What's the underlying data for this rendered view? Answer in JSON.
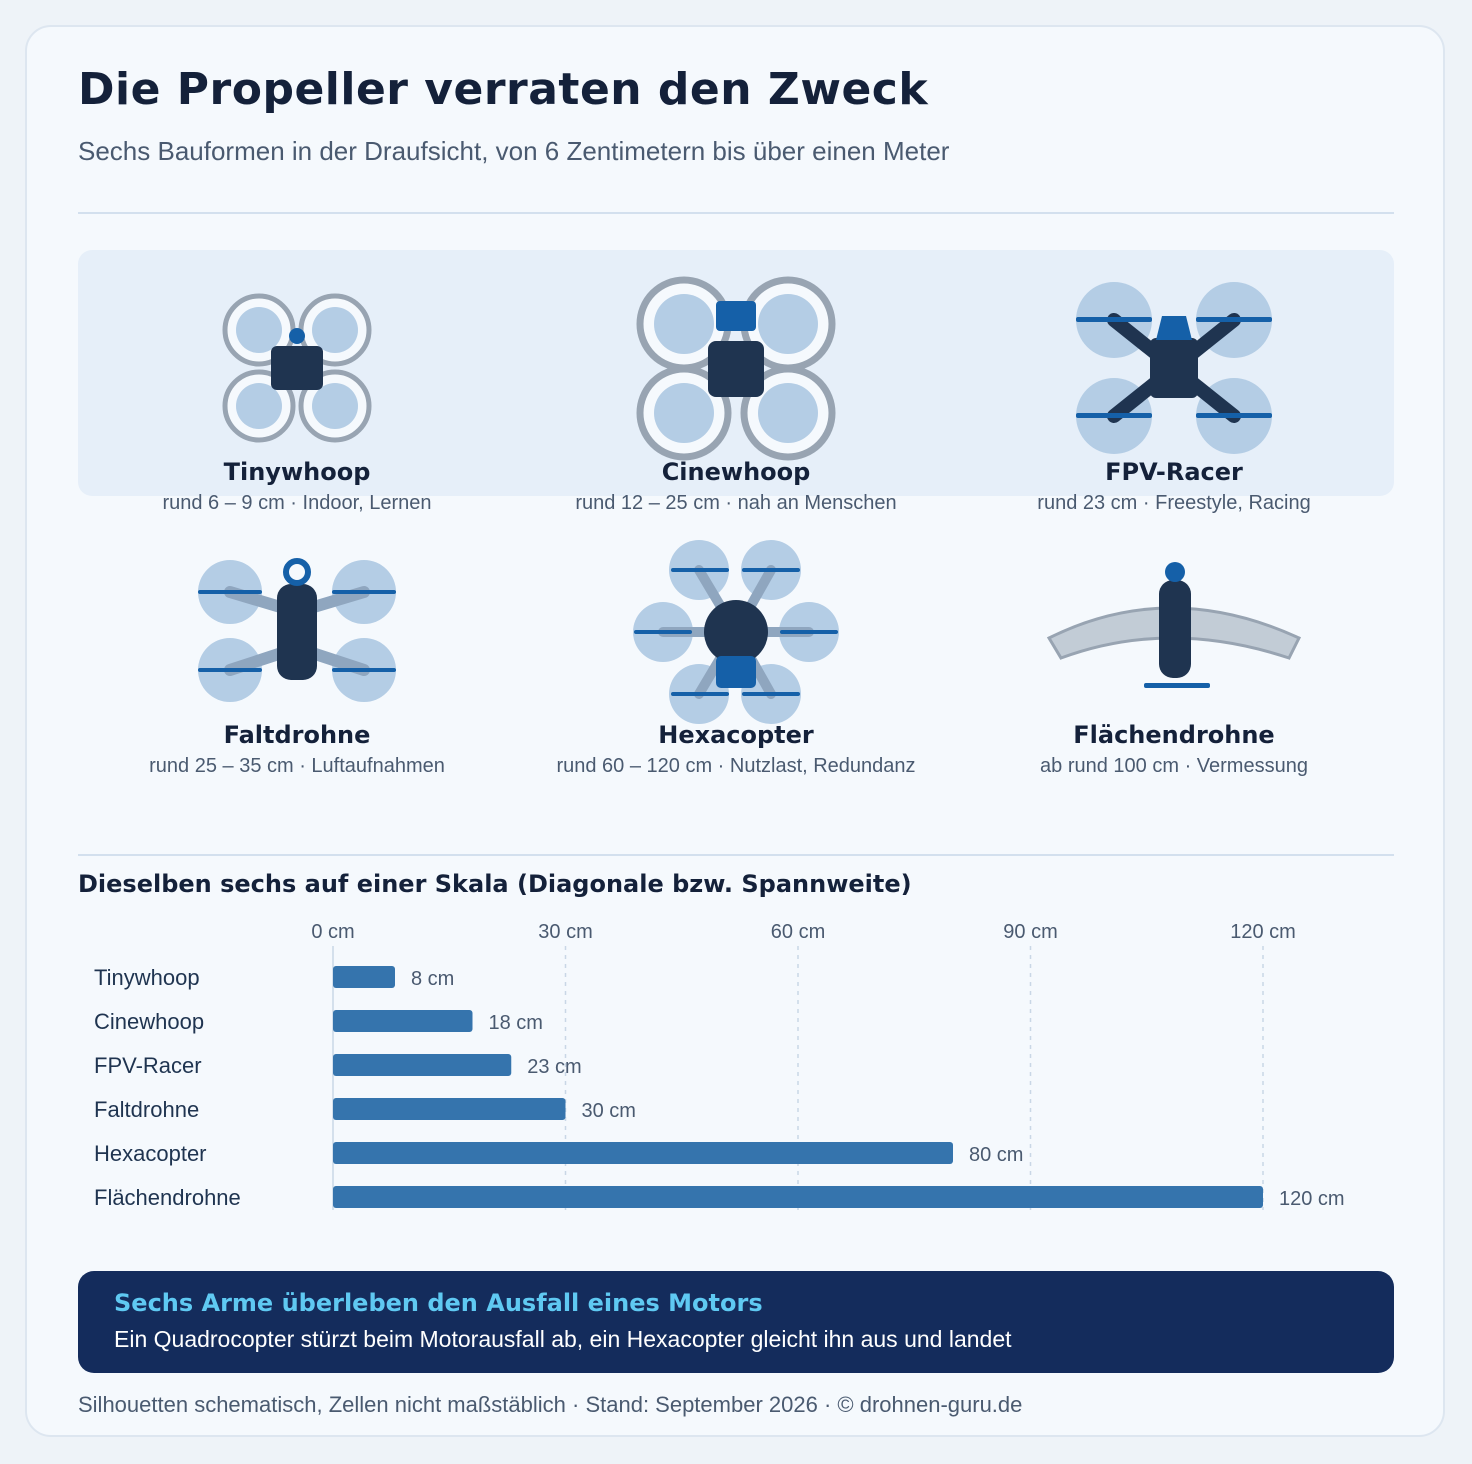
{
  "header": {
    "title": "Die Propeller verraten den Zweck",
    "subtitle": "Sechs Bauformen in der Draufsicht, von 6 Zentimetern bis über einen Meter"
  },
  "drones": [
    {
      "name": "Tinywhoop",
      "desc": "rund 6 – 9 cm · Indoor, Lernen",
      "icon": "tinywhoop-icon"
    },
    {
      "name": "Cinewhoop",
      "desc": "rund 12 – 25 cm · nah an Menschen",
      "icon": "cinewhoop-icon"
    },
    {
      "name": "FPV-Racer",
      "desc": "rund 23 cm · Freestyle, Racing",
      "icon": "fpv-racer-icon"
    },
    {
      "name": "Faltdrohne",
      "desc": "rund 25 – 35 cm · Luftaufnahmen",
      "icon": "faltdrohne-icon"
    },
    {
      "name": "Hexacopter",
      "desc": "rund 60 – 120 cm · Nutzlast, Redundanz",
      "icon": "hexacopter-icon"
    },
    {
      "name": "Flächendrohne",
      "desc": "ab rund 100 cm · Vermessung",
      "icon": "flaechendrohne-icon"
    }
  ],
  "chart_data": {
    "type": "bar",
    "orientation": "horizontal",
    "title": "Dieselben sechs auf einer Skala (Diagonale bzw. Spannweite)",
    "categories": [
      "Tinywhoop",
      "Cinewhoop",
      "FPV-Racer",
      "Faltdrohne",
      "Hexacopter",
      "Flächendrohne"
    ],
    "values": [
      8,
      18,
      23,
      30,
      80,
      120
    ],
    "value_labels": [
      "8 cm",
      "18 cm",
      "23 cm",
      "30 cm",
      "80 cm",
      "120 cm"
    ],
    "xticks": [
      0,
      30,
      60,
      90,
      120
    ],
    "xtick_labels": [
      "0 cm",
      "30 cm",
      "60 cm",
      "90 cm",
      "120 cm"
    ],
    "xlim": [
      0,
      120
    ],
    "grid": true,
    "bar_color": "#3574ad"
  },
  "callout": {
    "heading": "Sechs Arme überleben den Ausfall eines Motors",
    "text": "Ein Quadrocopter stürzt beim Motorausfall ab, ein Hexacopter gleicht ihn aus und landet"
  },
  "footer": "Silhouetten schematisch, Zellen nicht maßstäblich · Stand: September 2026 · © drohnen-guru.de",
  "colors": {
    "dark": "#1f3450",
    "accent": "#1560a8",
    "rotor": "#b4cde5",
    "guard": "#98a4b2",
    "arm": "#8fa6bf"
  }
}
